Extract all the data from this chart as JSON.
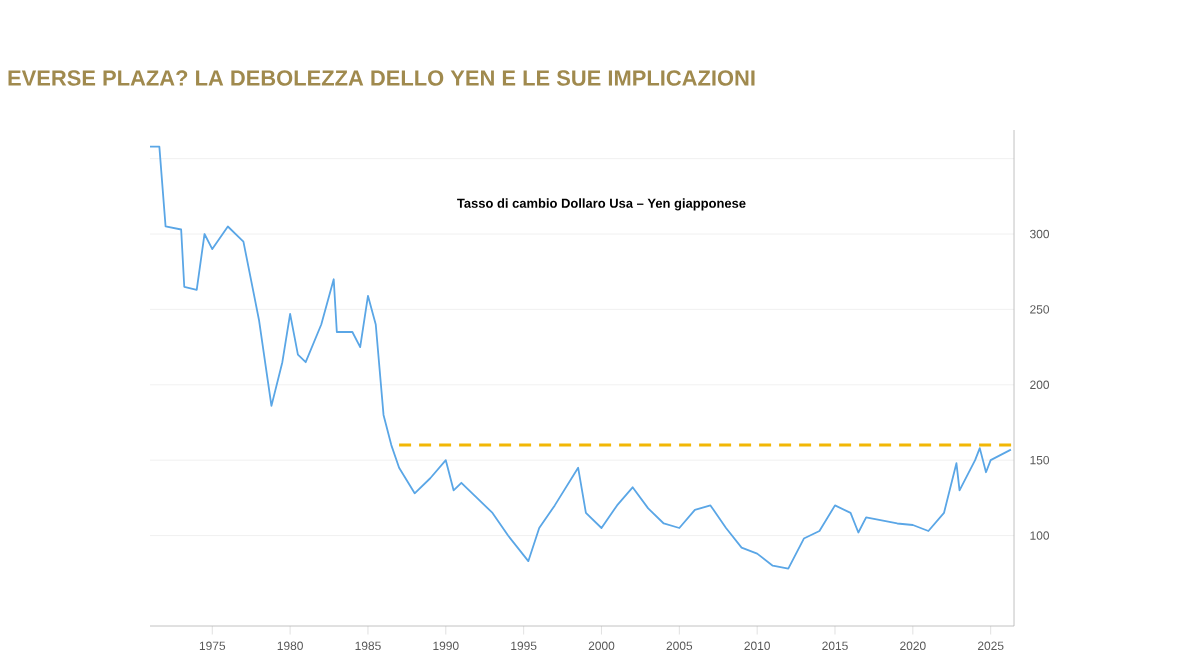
{
  "chart_data": {
    "type": "line",
    "title": "EVERSE PLAZA? LA DEBOLEZZA DELLO YEN E LE SUE IMPLICAZIONI",
    "subtitle": "Tasso di cambio Dollaro Usa – Yen giapponese",
    "series": [
      {
        "color": "#5aa6e6",
        "x": [
          1971.0,
          1971.6,
          1972.0,
          1973.0,
          1973.2,
          1974.0,
          1974.5,
          1975.0,
          1976.0,
          1977.0,
          1978.0,
          1978.8,
          1979.5,
          1980.0,
          1980.5,
          1981.0,
          1982.0,
          1982.8,
          1983.0,
          1984.0,
          1984.5,
          1985.0,
          1985.5,
          1986.0,
          1986.5,
          1987.0,
          1988.0,
          1989.0,
          1990.0,
          1990.5,
          1991.0,
          1992.0,
          1993.0,
          1994.0,
          1995.3,
          1996.0,
          1997.0,
          1998.5,
          1999.0,
          2000.0,
          2001.0,
          2002.0,
          2003.0,
          2004.0,
          2005.0,
          2006.0,
          2007.0,
          2008.0,
          2009.0,
          2010.0,
          2011.0,
          2012.0,
          2013.0,
          2014.0,
          2015.0,
          2016.0,
          2016.5,
          2017.0,
          2018.0,
          2019.0,
          2020.0,
          2021.0,
          2022.0,
          2022.8,
          2023.0,
          2024.0,
          2024.3,
          2024.7,
          2025.0,
          2026.3
        ],
        "values": [
          358,
          358,
          305,
          303,
          265,
          263,
          300,
          290,
          305,
          295,
          243,
          186,
          215,
          247,
          220,
          215,
          240,
          270,
          235,
          235,
          225,
          259,
          240,
          180,
          160,
          145,
          128,
          138,
          150,
          130,
          135,
          125,
          115,
          100,
          83,
          105,
          120,
          145,
          115,
          105,
          120,
          132,
          118,
          108,
          105,
          117,
          120,
          105,
          92,
          88,
          80,
          78,
          98,
          103,
          120,
          115,
          102,
          112,
          110,
          108,
          107,
          103,
          115,
          148,
          130,
          150,
          158,
          142,
          150,
          157
        ]
      },
      {
        "color": "#f2b705",
        "line_style": "dashed",
        "x": [
          1987.0,
          2026.5
        ],
        "values": [
          160,
          160
        ]
      }
    ],
    "xlim": [
      1971,
      2026.5
    ],
    "ylim": [
      40,
      369
    ],
    "xticks": [
      1975,
      1980,
      1985,
      1990,
      1995,
      2000,
      2005,
      2010,
      2015,
      2020,
      2025
    ],
    "yticks": [
      100,
      150,
      200,
      250,
      300,
      {
        "value": 350,
        "label": null
      }
    ],
    "grid": "y",
    "marker": "none",
    "line_style": "solid"
  }
}
